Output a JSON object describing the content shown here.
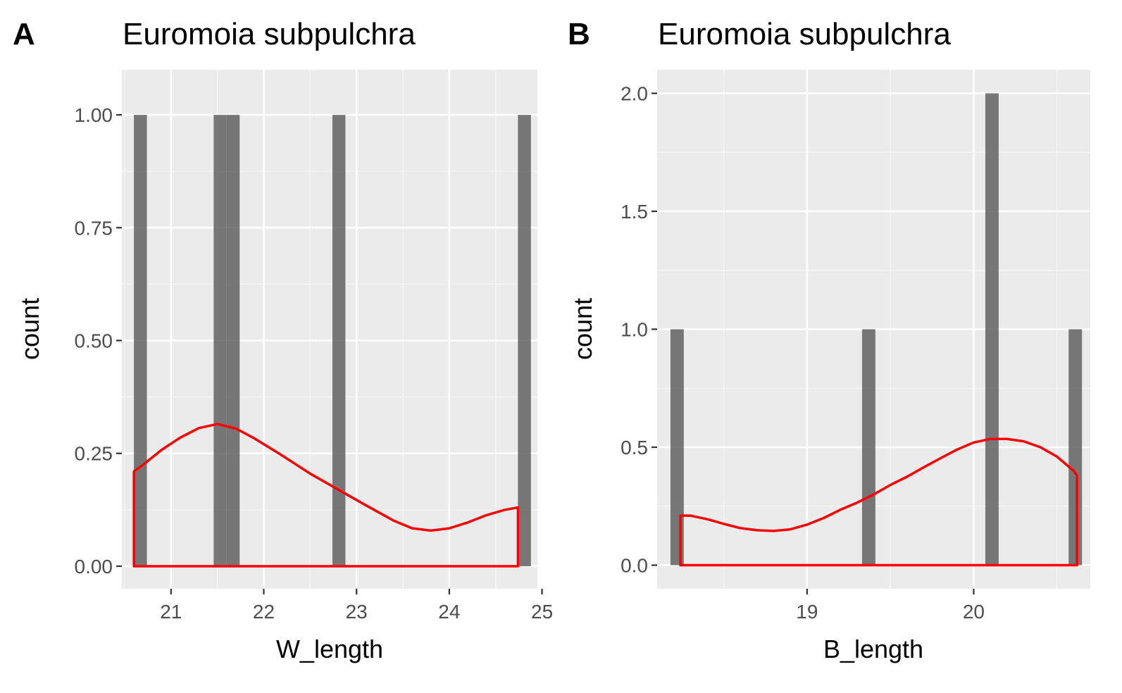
{
  "colors": {
    "panel_background": "#ebebeb",
    "grid_major": "#ffffff",
    "grid_minor": "#f5f5f5",
    "bar_fill": "#595959",
    "bar_opacity": 0.8,
    "density_line": "#ff0000",
    "tick_label": "#4d4d4d",
    "tick_mark": "#333333"
  },
  "chart_data": [
    {
      "type": "bar",
      "panel_letter": "A",
      "title": "Euromoia subpulchra",
      "xlabel": "W_length",
      "ylabel": "count",
      "xlim": [
        20.47,
        24.95
      ],
      "ylim": [
        -0.05,
        1.1
      ],
      "x_ticks": [
        21,
        22,
        23,
        24,
        25
      ],
      "x_tick_labels": [
        "21",
        "22",
        "23",
        "24",
        "25"
      ],
      "y_ticks": [
        0,
        0.25,
        0.5,
        0.75,
        1
      ],
      "y_tick_labels": [
        "0.00",
        "0.25",
        "0.50",
        "0.75",
        "1.00"
      ],
      "grid": true,
      "histogram": [
        {
          "x0": 20.6,
          "x1": 20.74,
          "count": 1
        },
        {
          "x0": 21.46,
          "x1": 21.6,
          "count": 1
        },
        {
          "x0": 21.6,
          "x1": 21.74,
          "count": 1
        },
        {
          "x0": 22.74,
          "x1": 22.88,
          "count": 1
        },
        {
          "x0": 24.74,
          "x1": 24.88,
          "count": 1
        }
      ],
      "density": {
        "x": [
          20.6,
          20.7,
          20.9,
          21.1,
          21.3,
          21.5,
          21.7,
          21.9,
          22.2,
          22.5,
          22.8,
          23.1,
          23.4,
          23.6,
          23.8,
          24.0,
          24.2,
          24.4,
          24.6,
          24.74
        ],
        "y": [
          0.21,
          0.225,
          0.258,
          0.285,
          0.306,
          0.315,
          0.305,
          0.283,
          0.245,
          0.205,
          0.17,
          0.135,
          0.101,
          0.084,
          0.079,
          0.084,
          0.097,
          0.113,
          0.125,
          0.13
        ]
      }
    },
    {
      "type": "bar",
      "panel_letter": "B",
      "title": "Euromoia subpulchra",
      "xlabel": "B_length",
      "ylabel": "count",
      "xlim": [
        18.1,
        20.7
      ],
      "ylim": [
        -0.1,
        2.1
      ],
      "x_ticks": [
        19,
        20
      ],
      "x_tick_labels": [
        "19",
        "20"
      ],
      "y_ticks": [
        0,
        0.5,
        1,
        1.5,
        2
      ],
      "y_tick_labels": [
        "0.0",
        "0.5",
        "1.0",
        "1.5",
        "2.0"
      ],
      "grid": true,
      "histogram": [
        {
          "x0": 18.18,
          "x1": 18.26,
          "count": 1
        },
        {
          "x0": 19.33,
          "x1": 19.41,
          "count": 1
        },
        {
          "x0": 20.07,
          "x1": 20.15,
          "count": 2
        },
        {
          "x0": 20.57,
          "x1": 20.65,
          "count": 1
        }
      ],
      "density": {
        "x": [
          18.24,
          18.3,
          18.4,
          18.5,
          18.6,
          18.7,
          18.8,
          18.9,
          19.0,
          19.1,
          19.2,
          19.3,
          19.4,
          19.5,
          19.6,
          19.7,
          19.8,
          19.9,
          20.0,
          20.1,
          20.2,
          20.3,
          20.4,
          20.5,
          20.6,
          20.62
        ],
        "y": [
          0.21,
          0.21,
          0.195,
          0.175,
          0.157,
          0.148,
          0.145,
          0.152,
          0.172,
          0.2,
          0.235,
          0.265,
          0.3,
          0.34,
          0.375,
          0.415,
          0.453,
          0.49,
          0.52,
          0.535,
          0.535,
          0.525,
          0.5,
          0.46,
          0.4,
          0.38
        ]
      }
    }
  ]
}
